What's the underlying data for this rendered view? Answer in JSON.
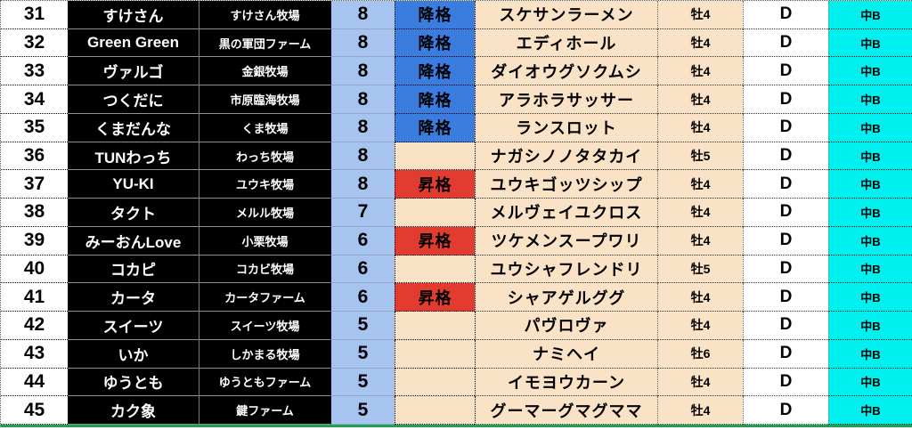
{
  "colors": {
    "text": "#000000",
    "row_number_bg": "#FFFFFF",
    "owner_bg": "#000000",
    "owner_text": "#FFFFFF",
    "grade_col_bg": "#A6C4EF",
    "demote_bg": "#3B7CDF",
    "promote_bg": "#E23C30",
    "status_empty_bg": "#FAE2C6",
    "horse_bg": "#FAE2C6",
    "sex_bg": "#FAE2C6",
    "rank_bg": "#FFFFFF",
    "class_bg": "#00F0F0",
    "green_line": "#1FA055"
  },
  "labels": {
    "demote": "降格",
    "promote": "昇格"
  },
  "table": {
    "rows": [
      {
        "no": "31",
        "owner": "すけさん",
        "farm": "すけさん牧場",
        "grade": "8",
        "status": "降格",
        "horse": "スケサンラーメン",
        "sex_age": "牡4",
        "rank": "D",
        "cls": "中B"
      },
      {
        "no": "32",
        "owner": "Green Green",
        "farm": "黒の軍団ファーム",
        "grade": "8",
        "status": "降格",
        "horse": "エディホール",
        "sex_age": "牡4",
        "rank": "D",
        "cls": "中B"
      },
      {
        "no": "33",
        "owner": "ヴァルゴ",
        "farm": "金銀牧場",
        "grade": "8",
        "status": "降格",
        "horse": "ダイオウグソクムシ",
        "sex_age": "牡4",
        "rank": "D",
        "cls": "中B"
      },
      {
        "no": "34",
        "owner": "つくだに",
        "farm": "市原臨海牧場",
        "grade": "8",
        "status": "降格",
        "horse": "アラホラサッサー",
        "sex_age": "牡4",
        "rank": "D",
        "cls": "中B"
      },
      {
        "no": "35",
        "owner": "くまだんな",
        "farm": "くま牧場",
        "grade": "8",
        "status": "降格",
        "horse": "ランスロット",
        "sex_age": "牡4",
        "rank": "D",
        "cls": "中B"
      },
      {
        "no": "36",
        "owner": "TUNわっち",
        "farm": "わっち牧場",
        "grade": "8",
        "status": "",
        "horse": "ナガシノノタタカイ",
        "sex_age": "牡5",
        "rank": "D",
        "cls": "中B"
      },
      {
        "no": "37",
        "owner": "YU-KI",
        "farm": "ユウキ牧場",
        "grade": "8",
        "status": "昇格",
        "horse": "ユウキゴッツシップ",
        "sex_age": "牡4",
        "rank": "D",
        "cls": "中B"
      },
      {
        "no": "38",
        "owner": "タクト",
        "farm": "メルル牧場",
        "grade": "7",
        "status": "",
        "horse": "メルヴェイユクロス",
        "sex_age": "牡4",
        "rank": "D",
        "cls": "中B"
      },
      {
        "no": "39",
        "owner": "みーおんLove",
        "farm": "小栗牧場",
        "grade": "6",
        "status": "昇格",
        "horse": "ツケメンスープワリ",
        "sex_age": "牡4",
        "rank": "D",
        "cls": "中B"
      },
      {
        "no": "40",
        "owner": "コカピ",
        "farm": "コカビ牧場",
        "grade": "6",
        "status": "",
        "horse": "ユウシャフレンドリ",
        "sex_age": "牡5",
        "rank": "D",
        "cls": "中B"
      },
      {
        "no": "41",
        "owner": "カータ",
        "farm": "カータファーム",
        "grade": "6",
        "status": "昇格",
        "horse": "シャアゲルググ",
        "sex_age": "牡4",
        "rank": "D",
        "cls": "中B"
      },
      {
        "no": "42",
        "owner": "スイーツ",
        "farm": "スイーツ牧場",
        "grade": "5",
        "status": "",
        "horse": "パヴロヴァ",
        "sex_age": "牡4",
        "rank": "D",
        "cls": "中B"
      },
      {
        "no": "43",
        "owner": "いか",
        "farm": "しかまる牧場",
        "grade": "5",
        "status": "",
        "horse": "ナミヘイ",
        "sex_age": "牡6",
        "rank": "D",
        "cls": "中B"
      },
      {
        "no": "44",
        "owner": "ゆうとも",
        "farm": "ゆうともファーム",
        "grade": "5",
        "status": "",
        "horse": "イモヨウカーン",
        "sex_age": "牡4",
        "rank": "D",
        "cls": "中B"
      },
      {
        "no": "45",
        "owner": "カク象",
        "farm": "鍵ファーム",
        "grade": "5",
        "status": "",
        "horse": "グーマーグマグママ",
        "sex_age": "牡4",
        "rank": "D",
        "cls": "中B"
      }
    ]
  }
}
